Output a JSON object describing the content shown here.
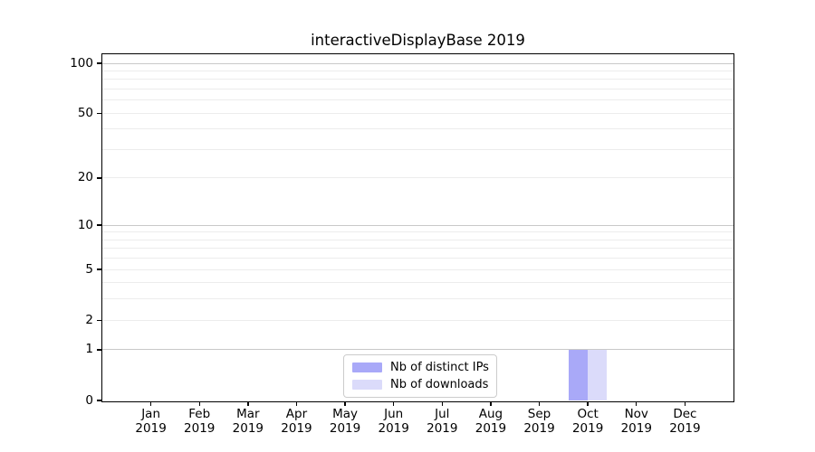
{
  "chart_data": {
    "type": "bar",
    "title": "interactiveDisplayBase 2019",
    "categories": [
      "Jan 2019",
      "Feb 2019",
      "Mar 2019",
      "Apr 2019",
      "May 2019",
      "Jun 2019",
      "Jul 2019",
      "Aug 2019",
      "Sep 2019",
      "Oct 2019",
      "Nov 2019",
      "Dec 2019"
    ],
    "series": [
      {
        "name": "Nb of distinct IPs",
        "color": "#a9a9f8",
        "values": [
          0,
          0,
          0,
          0,
          0,
          0,
          0,
          0,
          0,
          1,
          0,
          0
        ]
      },
      {
        "name": "Nb of downloads",
        "color": "#dbdbfa",
        "values": [
          0,
          0,
          0,
          0,
          0,
          0,
          0,
          0,
          0,
          1,
          0,
          0
        ]
      }
    ],
    "xlabel": "",
    "ylabel": "",
    "yscale": "log1p",
    "ylim": [
      0,
      113
    ],
    "ytick_labels": [
      0,
      1,
      2,
      5,
      10,
      20,
      50,
      100
    ],
    "major_gridlines": [
      1,
      10,
      100
    ],
    "minor_gridlines": [
      2,
      3,
      4,
      5,
      6,
      7,
      8,
      9,
      20,
      30,
      40,
      50,
      60,
      70,
      80,
      90
    ],
    "grid": "horizontal",
    "legend_position": "lower center",
    "colors": {
      "major_grid": "#c9c9c9",
      "minor_grid": "#ececec",
      "axis": "#000000",
      "background": "#ffffff",
      "text": "#000000"
    }
  }
}
